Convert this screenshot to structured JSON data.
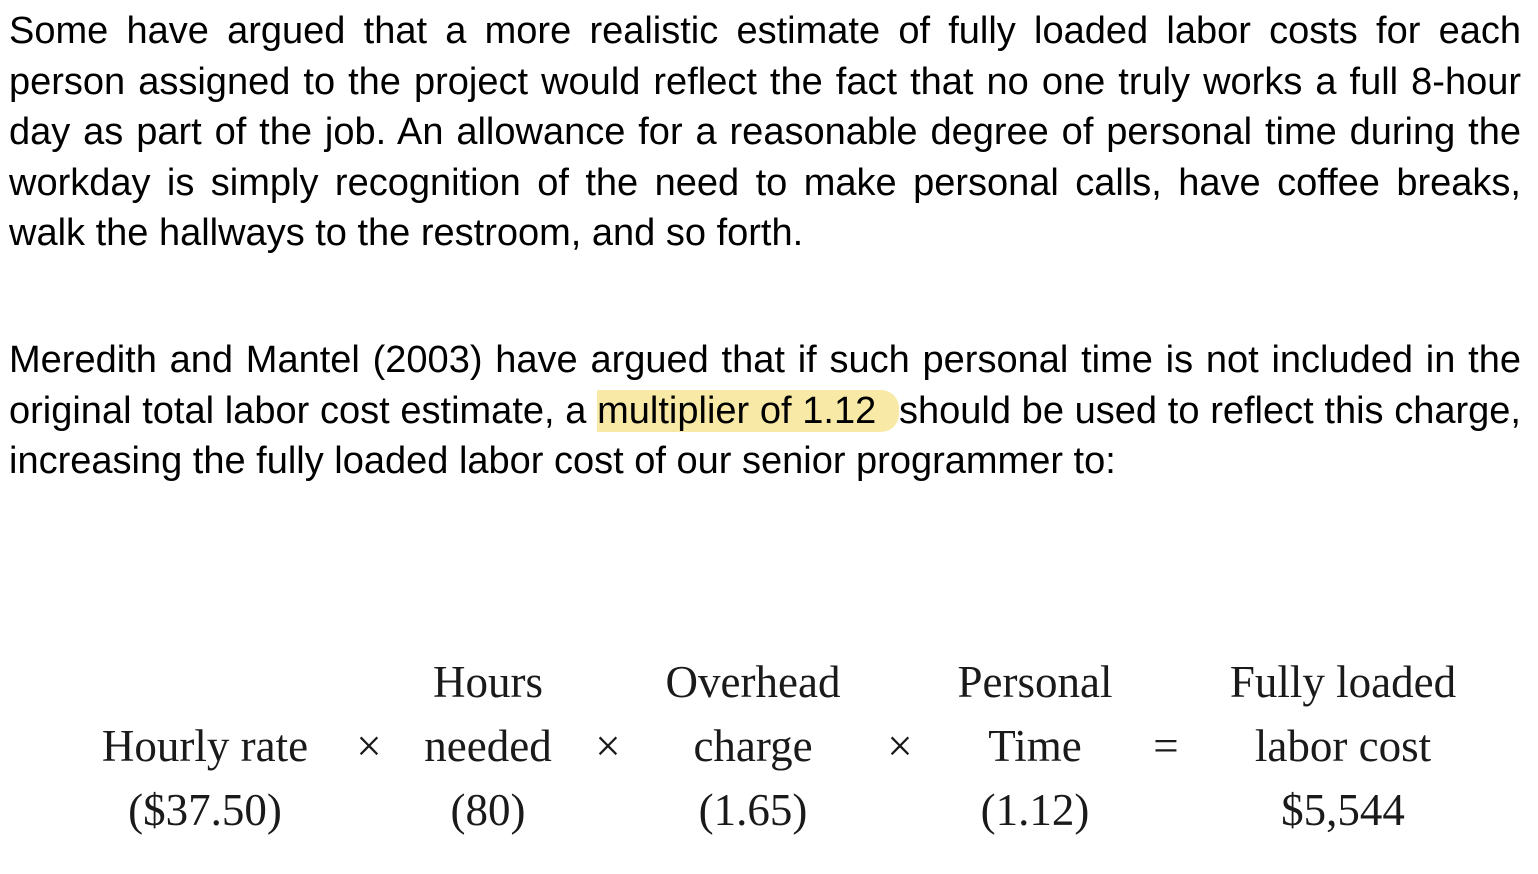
{
  "paragraph1": "Some have argued that a more realistic estimate of fully loaded labor costs for each person assigned to the project would reflect the fact that no one truly works a full 8-hour day as part of the job. An allowance for a reasonable degree of personal time during the workday is simply recognition of the need to make personal calls, have coffee breaks, walk the hallways to the restroom, and so forth.",
  "paragraph2": {
    "before": "Meredith and Mantel (2003) have argued that if such personal time is not included in the original total labor cost estimate, a ",
    "highlight": "multiplier of 1.12 ",
    "after": "should be used to reflect this charge, increasing the fully loaded labor cost of our senior programmer to:"
  },
  "highlight_color": "#f8eaa6",
  "formula": {
    "hourly_rate": {
      "label": "Hourly rate",
      "value": "($37.50)"
    },
    "hours_needed": {
      "label_top": "Hours",
      "label": "needed",
      "value": "(80)"
    },
    "overhead_charge": {
      "label_top": "Overhead",
      "label": "charge",
      "value": "(1.65)"
    },
    "personal_time": {
      "label_top": "Personal",
      "label": "Time",
      "value": "(1.12)"
    },
    "fully_loaded": {
      "label_top": "Fully loaded",
      "label": "labor cost",
      "value": "$5,544"
    },
    "times_sign": "×",
    "equals_sign": "="
  }
}
